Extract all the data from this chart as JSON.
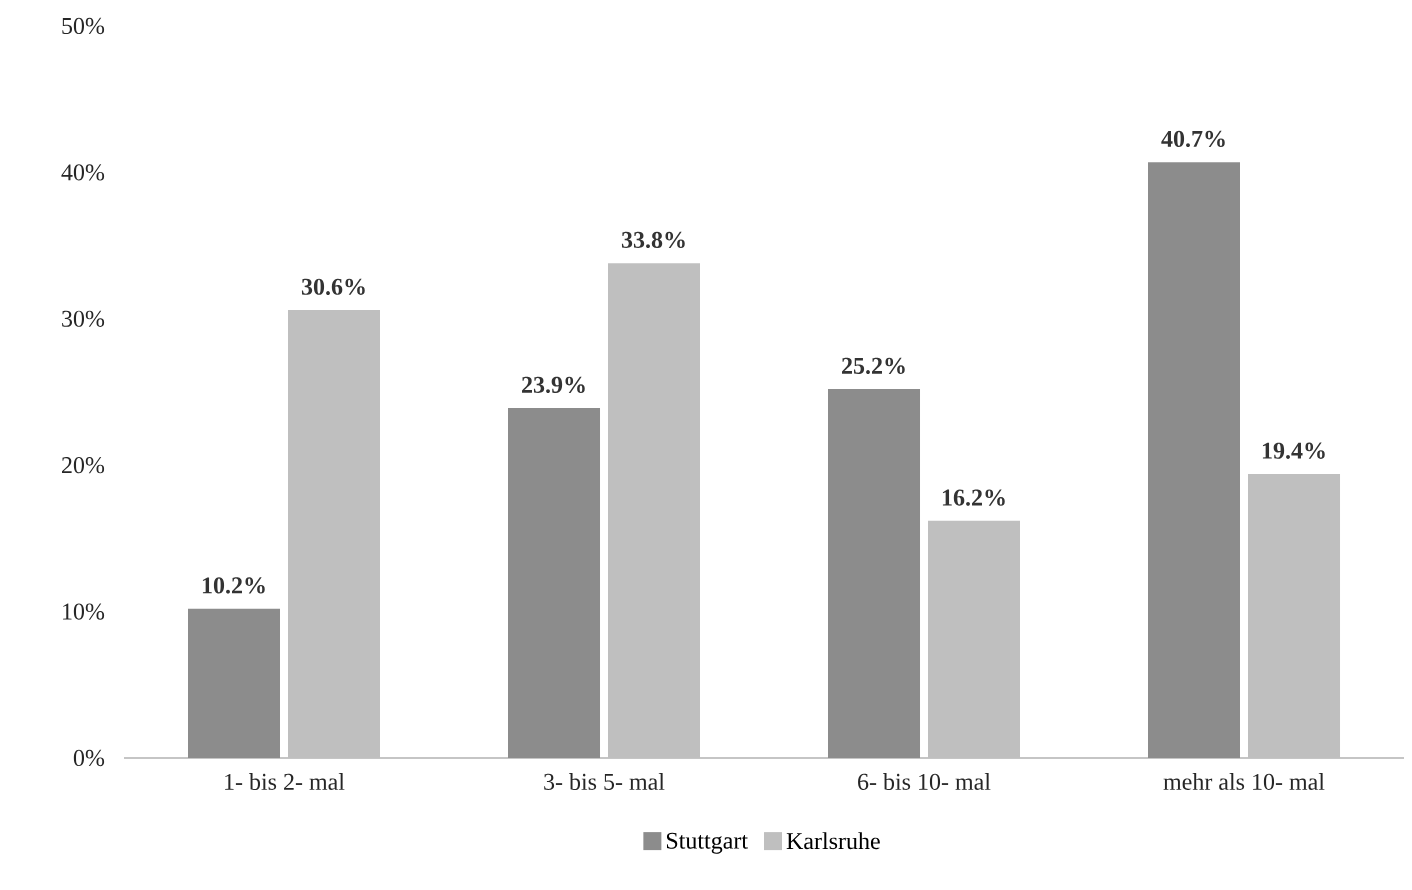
{
  "chart_data": {
    "type": "bar",
    "categories": [
      "1- bis 2- mal",
      "3- bis 5- mal",
      "6- bis 10- mal",
      "mehr als 10- mal"
    ],
    "series": [
      {
        "name": "Stuttgart",
        "color": "#8c8c8c",
        "values": [
          10.2,
          23.9,
          25.2,
          40.7
        ],
        "value_labels": [
          "10.2%",
          "23.9%",
          "25.2%",
          "40.7%"
        ]
      },
      {
        "name": "Karlsruhe",
        "color": "#bfbfbf",
        "values": [
          30.6,
          33.8,
          16.2,
          19.4
        ],
        "value_labels": [
          "30.6%",
          "33.8%",
          "16.2%",
          "19.4%"
        ]
      }
    ],
    "ylim": [
      0,
      50
    ],
    "yticks": [
      {
        "value": 0,
        "label": "0%"
      },
      {
        "value": 10,
        "label": "10%"
      },
      {
        "value": 20,
        "label": "20%"
      },
      {
        "value": 30,
        "label": "30%"
      },
      {
        "value": 40,
        "label": "40%"
      },
      {
        "value": 50,
        "label": "50%"
      }
    ],
    "grid": false,
    "legend": "bottom"
  }
}
